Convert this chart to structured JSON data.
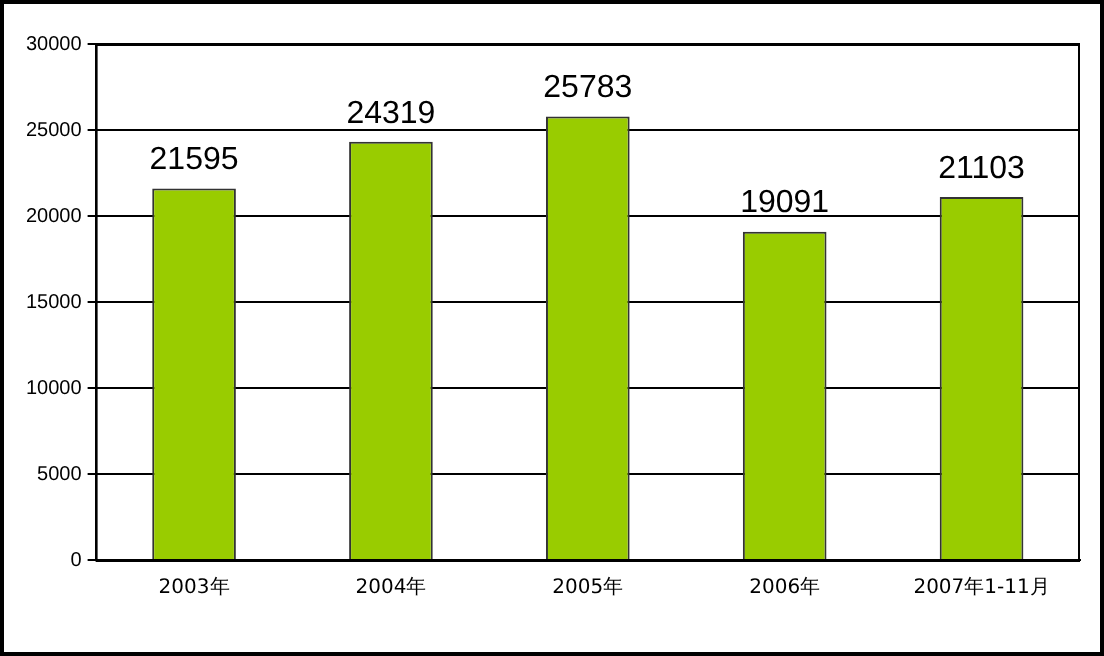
{
  "chart_data": {
    "type": "bar",
    "categories": [
      "2003年",
      "2004年",
      "2005年",
      "2006年",
      "2007年1-11月"
    ],
    "values": [
      21595,
      24319,
      25783,
      19091,
      21103
    ],
    "color": "#99cc00",
    "ylim": [
      0,
      30000
    ],
    "yticks": [
      0,
      5000,
      10000,
      15000,
      20000,
      25000,
      30000
    ],
    "grid": "y",
    "data_labels": true
  }
}
